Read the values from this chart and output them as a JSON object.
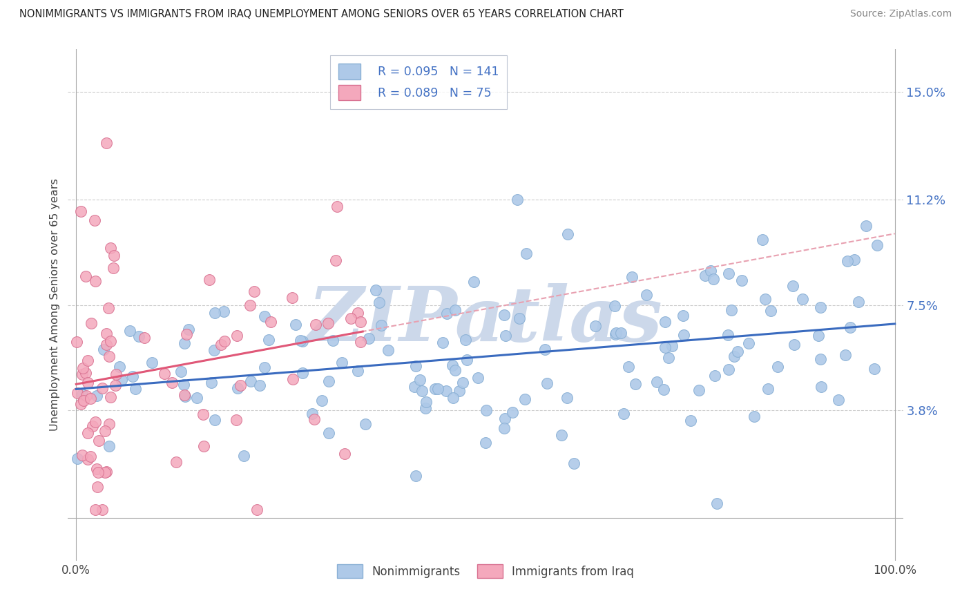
{
  "title": "NONIMMIGRANTS VS IMMIGRANTS FROM IRAQ UNEMPLOYMENT AMONG SENIORS OVER 65 YEARS CORRELATION CHART",
  "source": "Source: ZipAtlas.com",
  "ylabel": "Unemployment Among Seniors over 65 years",
  "nonimmigrants_R": 0.095,
  "nonimmigrants_N": 141,
  "immigrants_R": 0.089,
  "immigrants_N": 75,
  "color_nonimmigrants": "#aec9e8",
  "color_immigrants": "#f4a8bc",
  "color_nonimmigrants_line": "#3a6bbf",
  "color_immigrants_line": "#e05878",
  "color_immigrants_dashed": "#e8a0b0",
  "watermark_color": "#ccd8ea",
  "background_color": "#ffffff",
  "ytick_vals": [
    0,
    3.8,
    7.5,
    11.2,
    15.0
  ],
  "ytick_labels": [
    "",
    "3.8%",
    "7.5%",
    "11.2%",
    "15.0%"
  ]
}
